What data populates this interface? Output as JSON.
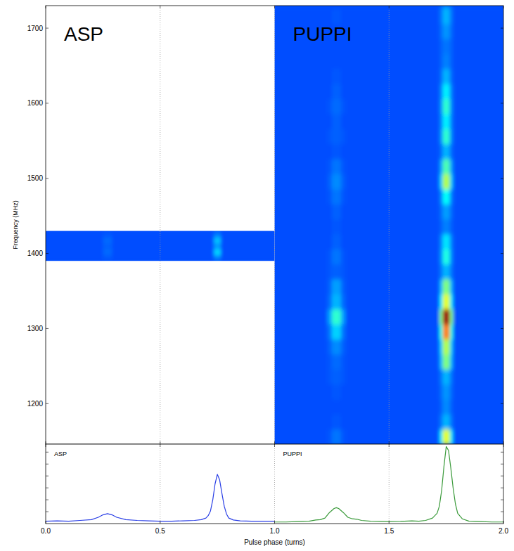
{
  "chart_data": [
    {
      "type": "heatmap",
      "ylabel": "Frequency (MHz)",
      "xlim": [
        0,
        2
      ],
      "xticks": [
        0,
        0.5,
        1,
        1.5,
        2
      ],
      "ylim": [
        1146,
        1730
      ],
      "yticks": [
        1200,
        1300,
        1400,
        1500,
        1600,
        1700
      ],
      "grid": "x",
      "tick_labels": "y",
      "color_range": [
        0,
        1
      ],
      "panels": [
        {
          "name": "ASP",
          "phase_edges": [
            0,
            0.25,
            0.29,
            0.735,
            0.765,
            1.0
          ],
          "freq_edges": [
            1390,
            1398,
            1406,
            1414,
            1422,
            1430
          ],
          "cells": [
            [
              0.2,
              0.21,
              0.2,
              0.24,
              0.2
            ],
            [
              0.2,
              0.23,
              0.2,
              0.34,
              0.2
            ],
            [
              0.2,
              0.22,
              0.2,
              0.27,
              0.2
            ],
            [
              0.2,
              0.23,
              0.2,
              0.32,
              0.2
            ],
            [
              0.2,
              0.21,
              0.2,
              0.24,
              0.2
            ]
          ]
        },
        {
          "name": "PUPPI",
          "phase_edges": [
            1.0,
            1.23,
            1.25,
            1.29,
            1.31,
            1.72,
            1.735,
            1.765,
            1.78,
            2.0
          ],
          "freq_edges": [
            1146,
            1166,
            1186,
            1206,
            1226,
            1246,
            1266,
            1286,
            1306,
            1326,
            1346,
            1366,
            1386,
            1406,
            1426,
            1446,
            1466,
            1486,
            1506,
            1526,
            1546,
            1566,
            1586,
            1606,
            1626,
            1646,
            1666,
            1686,
            1706,
            1726,
            1730
          ],
          "cells": [
            [
              0.2,
              0.21,
              0.24,
              0.21,
              0.2,
              0.35,
              0.6,
              0.35,
              0.2
            ],
            [
              0.2,
              0.2,
              0.21,
              0.2,
              0.2,
              0.24,
              0.3,
              0.24,
              0.2
            ],
            [
              0.2,
              0.2,
              0.2,
              0.2,
              0.2,
              0.22,
              0.26,
              0.22,
              0.2
            ],
            [
              0.2,
              0.2,
              0.21,
              0.2,
              0.2,
              0.23,
              0.27,
              0.23,
              0.2
            ],
            [
              0.2,
              0.21,
              0.22,
              0.21,
              0.2,
              0.24,
              0.3,
              0.24,
              0.2
            ],
            [
              0.2,
              0.21,
              0.23,
              0.21,
              0.2,
              0.3,
              0.5,
              0.3,
              0.2
            ],
            [
              0.2,
              0.22,
              0.26,
              0.22,
              0.2,
              0.32,
              0.55,
              0.32,
              0.2
            ],
            [
              0.2,
              0.24,
              0.33,
              0.24,
              0.2,
              0.4,
              0.75,
              0.4,
              0.2
            ],
            [
              0.2,
              0.28,
              0.42,
              0.28,
              0.2,
              0.5,
              0.97,
              0.5,
              0.2
            ],
            [
              0.2,
              0.23,
              0.3,
              0.23,
              0.2,
              0.35,
              0.6,
              0.35,
              0.2
            ],
            [
              0.2,
              0.22,
              0.28,
              0.22,
              0.2,
              0.3,
              0.5,
              0.3,
              0.2
            ],
            [
              0.2,
              0.21,
              0.22,
              0.21,
              0.2,
              0.24,
              0.3,
              0.24,
              0.2
            ],
            [
              0.2,
              0.21,
              0.24,
              0.21,
              0.2,
              0.26,
              0.4,
              0.26,
              0.2
            ],
            [
              0.2,
              0.2,
              0.22,
              0.2,
              0.2,
              0.25,
              0.35,
              0.25,
              0.2
            ],
            [
              0.2,
              0.2,
              0.21,
              0.2,
              0.2,
              0.22,
              0.25,
              0.22,
              0.2
            ],
            [
              0.2,
              0.2,
              0.22,
              0.2,
              0.2,
              0.23,
              0.28,
              0.23,
              0.2
            ],
            [
              0.2,
              0.21,
              0.24,
              0.21,
              0.2,
              0.25,
              0.38,
              0.25,
              0.2
            ],
            [
              0.2,
              0.22,
              0.26,
              0.22,
              0.2,
              0.32,
              0.55,
              0.32,
              0.2
            ],
            [
              0.2,
              0.21,
              0.24,
              0.21,
              0.2,
              0.28,
              0.45,
              0.28,
              0.2
            ],
            [
              0.2,
              0.2,
              0.21,
              0.2,
              0.2,
              0.23,
              0.3,
              0.23,
              0.2
            ],
            [
              0.2,
              0.21,
              0.22,
              0.21,
              0.2,
              0.26,
              0.42,
              0.26,
              0.2
            ],
            [
              0.2,
              0.2,
              0.22,
              0.2,
              0.2,
              0.25,
              0.36,
              0.25,
              0.2
            ],
            [
              0.2,
              0.21,
              0.23,
              0.21,
              0.2,
              0.26,
              0.42,
              0.26,
              0.2
            ],
            [
              0.2,
              0.2,
              0.22,
              0.2,
              0.2,
              0.25,
              0.36,
              0.25,
              0.2
            ],
            [
              0.2,
              0.2,
              0.21,
              0.2,
              0.2,
              0.23,
              0.3,
              0.23,
              0.2
            ],
            [
              0.2,
              0.2,
              0.2,
              0.2,
              0.2,
              0.22,
              0.25,
              0.22,
              0.2
            ],
            [
              0.2,
              0.2,
              0.2,
              0.2,
              0.2,
              0.22,
              0.24,
              0.22,
              0.2
            ],
            [
              0.2,
              0.2,
              0.2,
              0.2,
              0.2,
              0.23,
              0.27,
              0.23,
              0.2
            ],
            [
              0.2,
              0.2,
              0.21,
              0.2,
              0.2,
              0.24,
              0.3,
              0.24,
              0.2
            ],
            [
              0.2,
              0.2,
              0.2,
              0.2,
              0.2,
              0.23,
              0.28,
              0.23,
              0.2
            ]
          ]
        }
      ]
    },
    {
      "type": "line",
      "xlabel": "Pulse phase (turns)",
      "xlim": [
        0,
        2
      ],
      "xticks": [
        {
          "value": 0,
          "label": "0.0"
        },
        {
          "value": 0.5,
          "label": "0.5"
        },
        {
          "value": 1,
          "label": "1.0"
        },
        {
          "value": 1.5,
          "label": "1.5"
        },
        {
          "value": 2,
          "label": "2.0"
        }
      ],
      "ylim": [
        0,
        1
      ],
      "yticks": [
        0.15,
        0.3,
        0.45,
        0.6,
        0.75,
        0.9
      ],
      "grid": "x",
      "tick_labels": "x",
      "series": [
        {
          "name": "ASP",
          "color": "#2a3fe6",
          "x": [
            0,
            0.05,
            0.1,
            0.15,
            0.2,
            0.23,
            0.25,
            0.27,
            0.29,
            0.31,
            0.35,
            0.4,
            0.45,
            0.5,
            0.55,
            0.6,
            0.65,
            0.68,
            0.7,
            0.71,
            0.72,
            0.73,
            0.74,
            0.75,
            0.76,
            0.77,
            0.78,
            0.79,
            0.8,
            0.82,
            0.85,
            0.9,
            0.95,
            1.0
          ],
          "values": [
            0.03,
            0.035,
            0.03,
            0.04,
            0.05,
            0.08,
            0.11,
            0.125,
            0.11,
            0.08,
            0.05,
            0.04,
            0.035,
            0.03,
            0.03,
            0.035,
            0.04,
            0.05,
            0.07,
            0.1,
            0.16,
            0.3,
            0.5,
            0.62,
            0.55,
            0.38,
            0.22,
            0.12,
            0.07,
            0.045,
            0.035,
            0.03,
            0.03,
            0.03
          ]
        },
        {
          "name": "PUPPI",
          "color": "#3a9a3a",
          "x": [
            1.0,
            1.05,
            1.1,
            1.15,
            1.18,
            1.2,
            1.22,
            1.24,
            1.26,
            1.27,
            1.28,
            1.3,
            1.32,
            1.34,
            1.36,
            1.38,
            1.42,
            1.5,
            1.55,
            1.6,
            1.63,
            1.66,
            1.69,
            1.71,
            1.72,
            1.73,
            1.74,
            1.75,
            1.76,
            1.77,
            1.78,
            1.79,
            1.8,
            1.82,
            1.85,
            1.9,
            1.95,
            2.0
          ],
          "values": [
            0.02,
            0.02,
            0.025,
            0.03,
            0.045,
            0.05,
            0.07,
            0.14,
            0.19,
            0.2,
            0.19,
            0.14,
            0.08,
            0.06,
            0.055,
            0.04,
            0.03,
            0.025,
            0.028,
            0.035,
            0.03,
            0.04,
            0.07,
            0.13,
            0.22,
            0.42,
            0.72,
            0.97,
            0.92,
            0.7,
            0.45,
            0.25,
            0.13,
            0.06,
            0.03,
            0.025,
            0.02,
            0.02
          ]
        }
      ]
    }
  ]
}
